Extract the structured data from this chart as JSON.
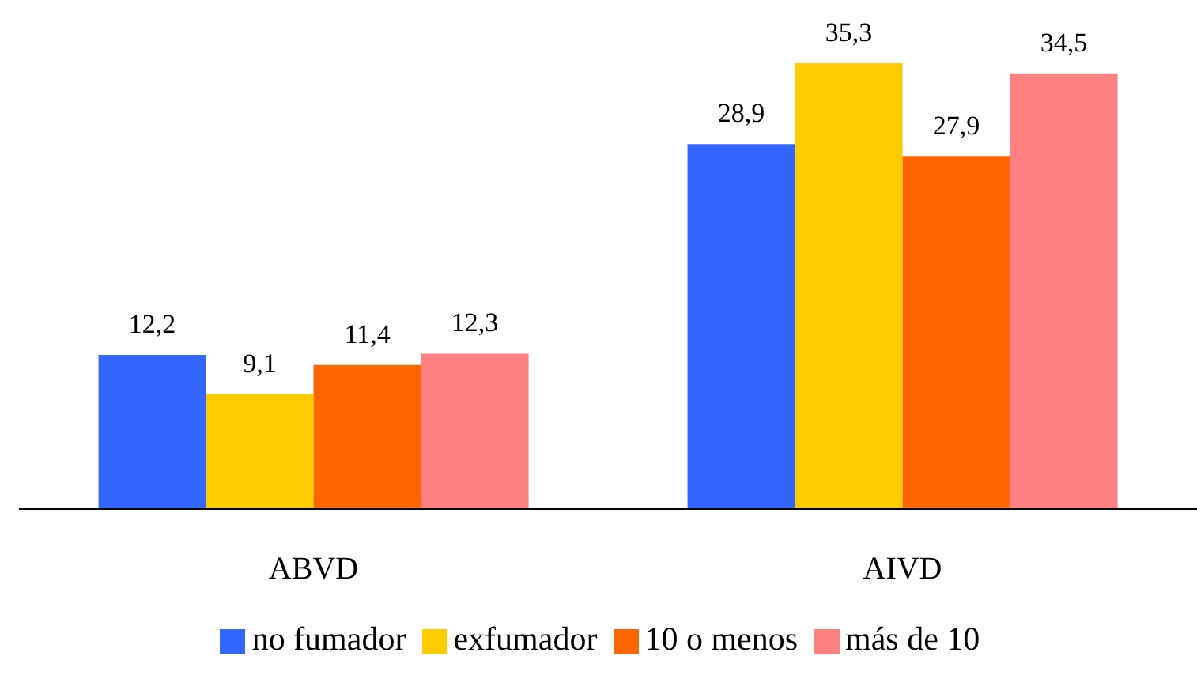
{
  "chart_data": {
    "type": "bar",
    "categories": [
      "ABVD",
      "AIVD"
    ],
    "series": [
      {
        "name": "no fumador",
        "color": "#3366ff",
        "values": [
          12.2,
          28.9
        ],
        "value_labels": [
          "12,2",
          "28,9"
        ]
      },
      {
        "name": "exfumador",
        "color": "#ffcc00",
        "values": [
          9.1,
          35.3
        ],
        "value_labels": [
          "9,1",
          "35,3"
        ]
      },
      {
        "name": "10 o menos",
        "color": "#ff6600",
        "values": [
          11.4,
          27.9
        ],
        "value_labels": [
          "11,4",
          "27,9"
        ]
      },
      {
        "name": "más de 10",
        "color": "#ff8080",
        "values": [
          12.3,
          34.5
        ],
        "value_labels": [
          "12,3",
          "34,5"
        ]
      }
    ],
    "legend": "bottom"
  }
}
